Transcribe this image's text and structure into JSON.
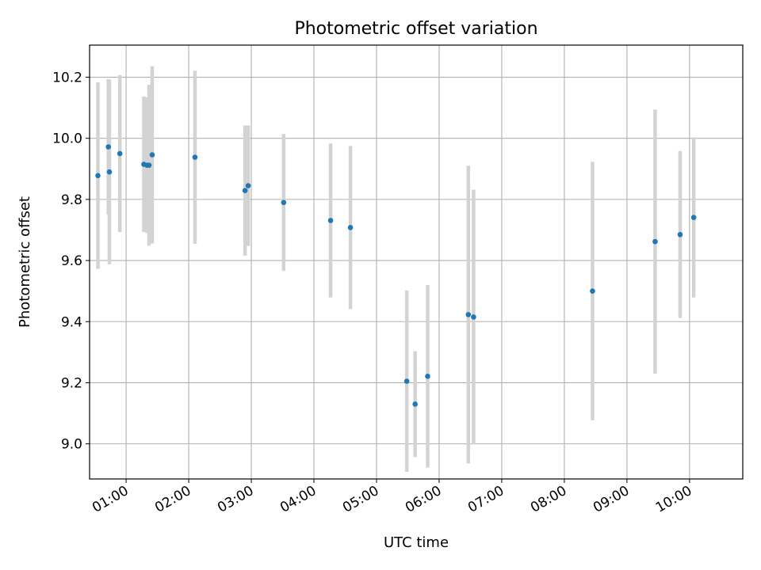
{
  "chart_data": {
    "type": "scatter",
    "title": "Photometric offset variation",
    "xlabel": "UTC time",
    "ylabel": "Photometric offset",
    "x_tick_labels": [
      "01:00",
      "02:00",
      "03:00",
      "04:00",
      "05:00",
      "06:00",
      "07:00",
      "08:00",
      "09:00",
      "10:00"
    ],
    "y_tick_labels": [
      "9.0",
      "9.2",
      "9.4",
      "9.6",
      "9.8",
      "10.0",
      "10.2"
    ],
    "xlim": [
      "00:25",
      "10:51"
    ],
    "ylim": [
      8.885,
      10.305
    ],
    "grid": true,
    "marker_color": "#1f77b4",
    "errorbar_color": "#d3d3d3",
    "series": [
      {
        "x": [
          "00:33",
          "00:43",
          "00:44",
          "00:54",
          "01:17",
          "01:20",
          "01:22",
          "01:25",
          "02:06",
          "02:54",
          "02:57",
          "03:31",
          "04:16",
          "04:35",
          "05:29",
          "05:37",
          "05:49",
          "06:28",
          "06:33",
          "08:27",
          "09:27",
          "09:51",
          "10:04"
        ],
        "y": [
          9.878,
          9.972,
          9.89,
          9.95,
          9.915,
          9.912,
          9.912,
          9.946,
          9.938,
          9.829,
          9.845,
          9.79,
          9.731,
          9.708,
          9.205,
          9.13,
          9.221,
          9.423,
          9.415,
          9.5,
          9.662,
          9.685,
          9.741
        ],
        "yerr": [
          0.305,
          0.222,
          0.302,
          0.257,
          0.222,
          0.222,
          0.263,
          0.29,
          0.283,
          0.213,
          0.197,
          0.224,
          0.252,
          0.267,
          0.297,
          0.173,
          0.299,
          0.487,
          0.417,
          0.423,
          0.432,
          0.273,
          0.262
        ]
      }
    ]
  }
}
